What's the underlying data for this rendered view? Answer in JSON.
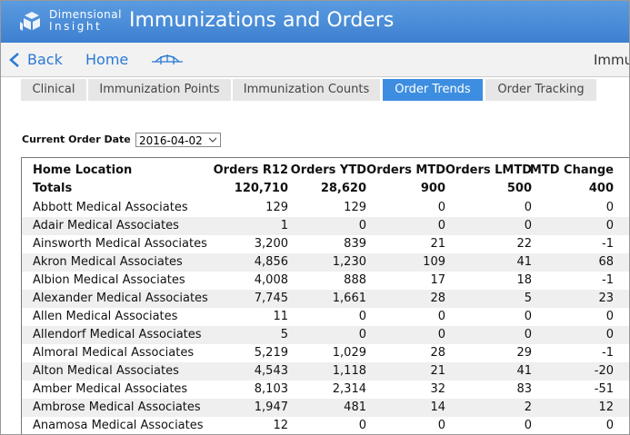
{
  "header": {
    "logo": [
      "Dimensional",
      "Insight"
    ],
    "title": "Immunizations and Orders"
  },
  "nav": {
    "back": "Back",
    "home": "Home",
    "right": "Immu"
  },
  "tabs": {
    "items": [
      "Clinical",
      "Immunization Points",
      "Immunization Counts",
      "Order Trends",
      "Order Tracking"
    ],
    "active": 3
  },
  "filter": {
    "label": "Current Order Date",
    "value": "2016-04-02"
  },
  "table": {
    "columns": [
      "Home Location",
      "Orders R12",
      "Orders YTD",
      "Orders MTD",
      "Orders LMTD",
      "MTD Change"
    ],
    "totals": [
      "Totals",
      "120,710",
      "28,620",
      "900",
      "500",
      "400"
    ],
    "rows": [
      [
        "Abbott Medical Associates",
        "129",
        "129",
        "0",
        "0",
        "0"
      ],
      [
        "Adair Medical Associates",
        "1",
        "0",
        "0",
        "0",
        "0"
      ],
      [
        "Ainsworth Medical Associates",
        "3,200",
        "839",
        "21",
        "22",
        "-1"
      ],
      [
        "Akron Medical Associates",
        "4,856",
        "1,230",
        "109",
        "41",
        "68"
      ],
      [
        "Albion Medical Associates",
        "4,008",
        "888",
        "17",
        "18",
        "-1"
      ],
      [
        "Alexander Medical Associates",
        "7,745",
        "1,661",
        "28",
        "5",
        "23"
      ],
      [
        "Allen Medical Associates",
        "11",
        "0",
        "0",
        "0",
        "0"
      ],
      [
        "Allendorf Medical Associates",
        "5",
        "0",
        "0",
        "0",
        "0"
      ],
      [
        "Almoral Medical Associates",
        "5,219",
        "1,029",
        "28",
        "29",
        "-1"
      ],
      [
        "Alton Medical Associates",
        "4,543",
        "1,118",
        "21",
        "41",
        "-20"
      ],
      [
        "Amber Medical Associates",
        "8,103",
        "2,314",
        "32",
        "83",
        "-51"
      ],
      [
        "Ambrose Medical Associates",
        "1,947",
        "481",
        "14",
        "2",
        "12"
      ],
      [
        "Anamosa Medical Associates",
        "12",
        "0",
        "0",
        "0",
        "0"
      ]
    ]
  }
}
